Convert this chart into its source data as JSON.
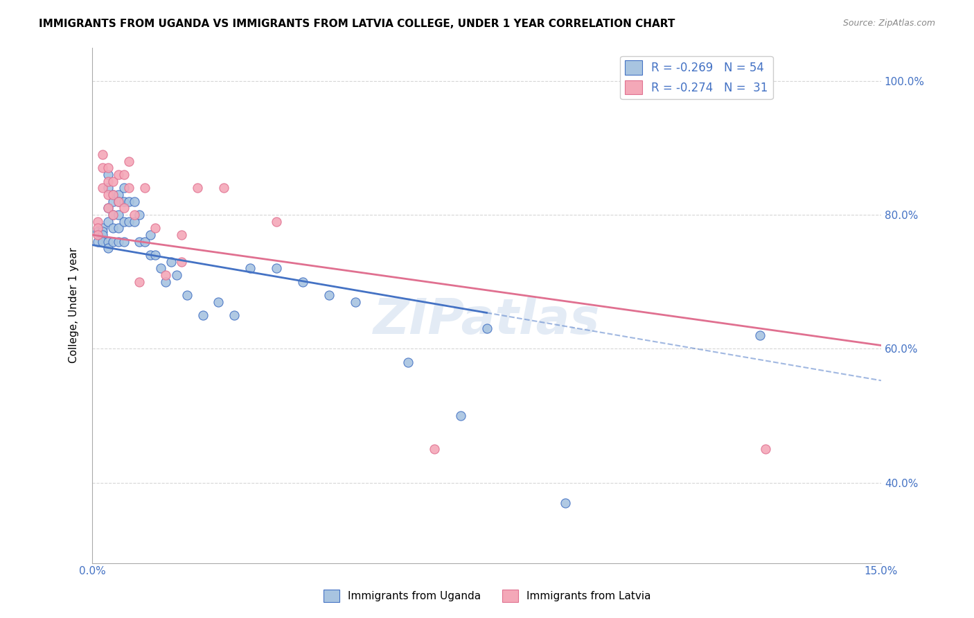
{
  "title": "IMMIGRANTS FROM UGANDA VS IMMIGRANTS FROM LATVIA COLLEGE, UNDER 1 YEAR CORRELATION CHART",
  "source": "Source: ZipAtlas.com",
  "ylabel": "College, Under 1 year",
  "legend_label_uganda": "Immigrants from Uganda",
  "legend_label_latvia": "Immigrants from Latvia",
  "R_uganda": -0.269,
  "R_latvia": -0.274,
  "N_uganda": 54,
  "N_latvia": 31,
  "color_uganda": "#a8c4e0",
  "color_latvia": "#f4a8b8",
  "trendline_uganda": "#4472c4",
  "trendline_latvia": "#e07090",
  "watermark": "ZIPatlas",
  "xmin": 0.0,
  "xmax": 0.15,
  "ymin": 0.28,
  "ymax": 1.05,
  "trend_uganda_intercept": 0.755,
  "trend_uganda_slope": -1.35,
  "trend_latvia_intercept": 0.77,
  "trend_latvia_slope": -1.1,
  "trend_uganda_solid_end": 0.075,
  "trend_latvia_solid_end": 0.15,
  "uganda_x": [
    0.001,
    0.001,
    0.002,
    0.002,
    0.002,
    0.002,
    0.003,
    0.003,
    0.003,
    0.003,
    0.003,
    0.003,
    0.004,
    0.004,
    0.004,
    0.004,
    0.004,
    0.005,
    0.005,
    0.005,
    0.005,
    0.005,
    0.006,
    0.006,
    0.006,
    0.006,
    0.007,
    0.007,
    0.008,
    0.008,
    0.009,
    0.009,
    0.01,
    0.011,
    0.011,
    0.012,
    0.013,
    0.014,
    0.015,
    0.016,
    0.018,
    0.021,
    0.024,
    0.027,
    0.03,
    0.035,
    0.04,
    0.045,
    0.05,
    0.06,
    0.07,
    0.075,
    0.09,
    0.127
  ],
  "uganda_y": [
    0.775,
    0.76,
    0.78,
    0.775,
    0.77,
    0.76,
    0.86,
    0.84,
    0.81,
    0.79,
    0.76,
    0.75,
    0.83,
    0.82,
    0.8,
    0.78,
    0.76,
    0.83,
    0.82,
    0.8,
    0.78,
    0.76,
    0.84,
    0.82,
    0.79,
    0.76,
    0.82,
    0.79,
    0.82,
    0.79,
    0.8,
    0.76,
    0.76,
    0.77,
    0.74,
    0.74,
    0.72,
    0.7,
    0.73,
    0.71,
    0.68,
    0.65,
    0.67,
    0.65,
    0.72,
    0.72,
    0.7,
    0.68,
    0.67,
    0.58,
    0.5,
    0.63,
    0.37,
    0.62
  ],
  "latvia_x": [
    0.001,
    0.001,
    0.001,
    0.002,
    0.002,
    0.002,
    0.003,
    0.003,
    0.003,
    0.003,
    0.004,
    0.004,
    0.004,
    0.005,
    0.005,
    0.006,
    0.006,
    0.007,
    0.007,
    0.008,
    0.009,
    0.01,
    0.012,
    0.014,
    0.017,
    0.017,
    0.02,
    0.025,
    0.035,
    0.065,
    0.128
  ],
  "latvia_y": [
    0.79,
    0.78,
    0.77,
    0.89,
    0.87,
    0.84,
    0.87,
    0.85,
    0.83,
    0.81,
    0.85,
    0.83,
    0.8,
    0.86,
    0.82,
    0.86,
    0.81,
    0.88,
    0.84,
    0.8,
    0.7,
    0.84,
    0.78,
    0.71,
    0.77,
    0.73,
    0.84,
    0.84,
    0.79,
    0.45,
    0.45
  ]
}
